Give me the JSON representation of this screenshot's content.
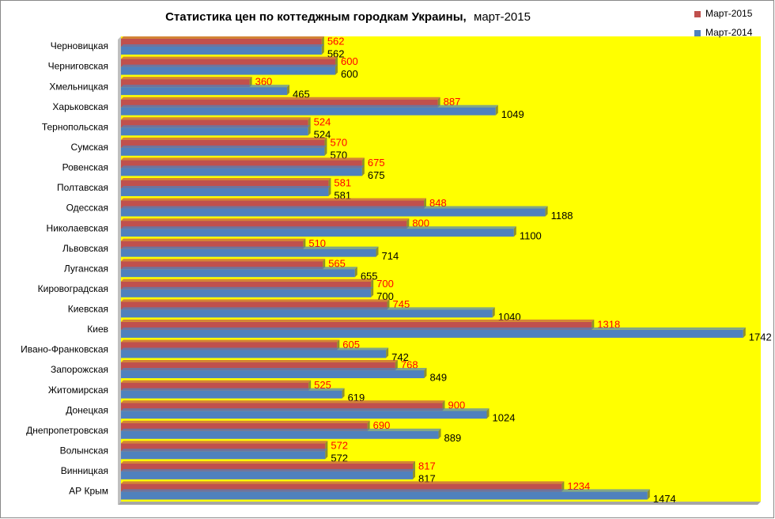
{
  "chart_data": {
    "type": "bar",
    "orientation": "horizontal",
    "title": "Статистика  цен по коттеджным городкам Украины,",
    "subtitle": "март-2015",
    "categories": [
      "Черновицкая",
      "Черниговская",
      "Хмельницкая",
      "Харьковская",
      "Тернопольская",
      "Сумская",
      "Ровенская",
      "Полтавская",
      "Одесская",
      "Николаевская",
      "Львовская",
      "Луганская",
      "Кировоградская",
      "Киевская",
      "Киев",
      "Ивано-Франковская",
      "Запорожская",
      "Житомирская",
      "Донецкая",
      "Днепропетровская",
      "Волынская",
      "Винницкая",
      "АР Крым"
    ],
    "series": [
      {
        "name": "Март-2015",
        "color": "#c0504d",
        "label_color": "#ff0000",
        "values": [
          562,
          600,
          360,
          887,
          524,
          570,
          675,
          581,
          848,
          800,
          510,
          565,
          700,
          745,
          1318,
          605,
          768,
          525,
          900,
          690,
          572,
          817,
          1234
        ]
      },
      {
        "name": "Март-2014",
        "color": "#4f81bd",
        "label_color": "#000000",
        "values": [
          562,
          600,
          465,
          1049,
          524,
          570,
          675,
          581,
          1188,
          1100,
          714,
          655,
          700,
          1040,
          1742,
          742,
          849,
          619,
          1024,
          889,
          572,
          817,
          1474
        ]
      }
    ],
    "xlim": [
      0,
      1800
    ],
    "legend": "top-right",
    "background": "#ffff00"
  }
}
